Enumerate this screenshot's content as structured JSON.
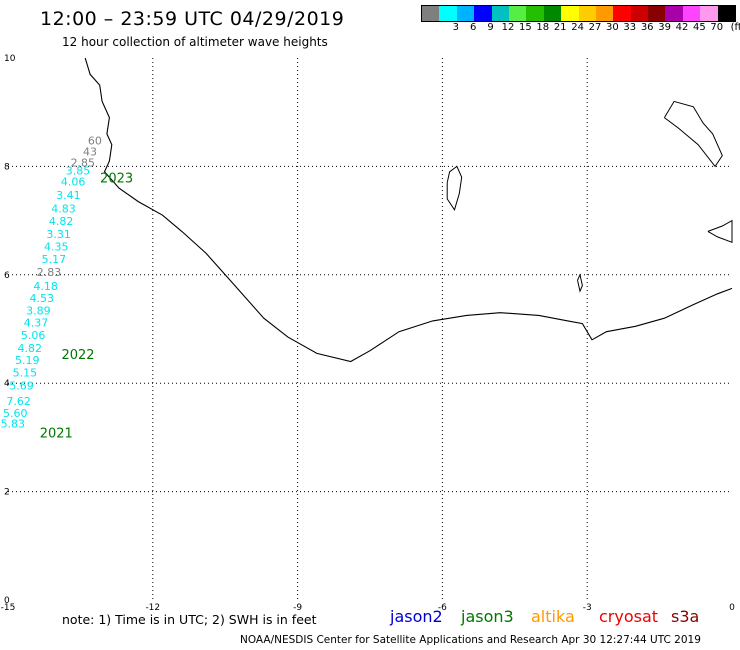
{
  "header": {
    "title": "12:00 – 23:59 UTC 04/29/2019",
    "subtitle": "12 hour collection of altimeter wave heights"
  },
  "legend": {
    "unit": "(ft)",
    "swatches": [
      {
        "color": "#7f7f7f",
        "label": ""
      },
      {
        "color": "#00ffff",
        "label": "3"
      },
      {
        "color": "#00b3ff",
        "label": "6"
      },
      {
        "color": "#0000ff",
        "label": "9"
      },
      {
        "color": "#00c0c0",
        "label": "12"
      },
      {
        "color": "#55ee44",
        "label": "15"
      },
      {
        "color": "#22c000",
        "label": "18"
      },
      {
        "color": "#008800",
        "label": "21"
      },
      {
        "color": "#ffff00",
        "label": "24"
      },
      {
        "color": "#ffcc00",
        "label": "27"
      },
      {
        "color": "#ff9900",
        "label": "30"
      },
      {
        "color": "#ff0000",
        "label": "33"
      },
      {
        "color": "#cc0000",
        "label": "36"
      },
      {
        "color": "#880000",
        "label": "39"
      },
      {
        "color": "#aa00aa",
        "label": "42"
      },
      {
        "color": "#ff44ff",
        "label": "45"
      },
      {
        "color": "#ff99ee",
        "label": "70"
      },
      {
        "color": "#000000",
        "label": ""
      }
    ]
  },
  "axes": {
    "x_ticks": [
      "-15",
      "-12",
      "-9",
      "-6",
      "-3",
      "0"
    ],
    "y_ticks": [
      "0",
      "2",
      "4",
      "6",
      "8",
      "10"
    ],
    "x_range": [
      -15,
      0
    ],
    "y_range": [
      0,
      10
    ]
  },
  "track": {
    "observations": [
      {
        "lon": -13.2,
        "lat": 8.4,
        "swh": "60",
        "color": "#7f7f7f"
      },
      {
        "lon": -13.3,
        "lat": 8.2,
        "swh": "43",
        "color": "#7f7f7f"
      },
      {
        "lon": -13.45,
        "lat": 8.0,
        "swh": "2.85",
        "color": "#7f7f7f"
      },
      {
        "lon": -13.55,
        "lat": 7.85,
        "swh": "3.85",
        "color": "#00e5ee"
      },
      {
        "lon": -13.65,
        "lat": 7.65,
        "swh": "4.06",
        "color": "#00e5ee"
      },
      {
        "lon": -13.75,
        "lat": 7.4,
        "swh": "3.41",
        "color": "#00e5ee"
      },
      {
        "lon": -13.85,
        "lat": 7.15,
        "swh": "4.83",
        "color": "#00e5ee"
      },
      {
        "lon": -13.9,
        "lat": 6.92,
        "swh": "4.82",
        "color": "#00e5ee"
      },
      {
        "lon": -13.95,
        "lat": 6.68,
        "swh": "3.31",
        "color": "#00e5ee"
      },
      {
        "lon": -14.0,
        "lat": 6.45,
        "swh": "4.35",
        "color": "#00e5ee"
      },
      {
        "lon": -14.05,
        "lat": 6.22,
        "swh": "5.17",
        "color": "#00e5ee"
      },
      {
        "lon": -14.15,
        "lat": 5.98,
        "swh": "2.83",
        "color": "#7f7f7f"
      },
      {
        "lon": -14.22,
        "lat": 5.72,
        "swh": "4.18",
        "color": "#00e5ee"
      },
      {
        "lon": -14.3,
        "lat": 5.5,
        "swh": "4.53",
        "color": "#00e5ee"
      },
      {
        "lon": -14.37,
        "lat": 5.27,
        "swh": "3.89",
        "color": "#00e5ee"
      },
      {
        "lon": -14.42,
        "lat": 5.05,
        "swh": "4.37",
        "color": "#00e5ee"
      },
      {
        "lon": -14.48,
        "lat": 4.82,
        "swh": "5.06",
        "color": "#00e5ee"
      },
      {
        "lon": -14.55,
        "lat": 4.58,
        "swh": "4.82",
        "color": "#00e5ee"
      },
      {
        "lon": -14.6,
        "lat": 4.35,
        "swh": "5.19",
        "color": "#00e5ee"
      },
      {
        "lon": -14.65,
        "lat": 4.12,
        "swh": "5.15",
        "color": "#00e5ee"
      },
      {
        "lon": -14.72,
        "lat": 3.88,
        "swh": "5.69",
        "color": "#00e5ee"
      },
      {
        "lon": -14.78,
        "lat": 3.6,
        "swh": "7.62",
        "color": "#00e5ee"
      },
      {
        "lon": -14.85,
        "lat": 3.38,
        "swh": "5.60",
        "color": "#00e5ee"
      },
      {
        "lon": -14.9,
        "lat": 3.18,
        "swh": "5.83",
        "color": "#00e5ee"
      }
    ],
    "year_marks": [
      {
        "lon": -12.75,
        "lat": 7.7,
        "text": "2023"
      },
      {
        "lon": -13.55,
        "lat": 4.45,
        "text": "2022"
      },
      {
        "lon": -14.0,
        "lat": 3.0,
        "text": "2021"
      }
    ]
  },
  "coastline": [
    [
      -13.4,
      10
    ],
    [
      -13.3,
      9.7
    ],
    [
      -13.1,
      9.5
    ],
    [
      -13.05,
      9.2
    ],
    [
      -12.9,
      8.9
    ],
    [
      -12.95,
      8.6
    ],
    [
      -12.85,
      8.4
    ],
    [
      -12.9,
      8.1
    ],
    [
      -13.0,
      7.9
    ],
    [
      -12.7,
      7.6
    ],
    [
      -12.3,
      7.35
    ],
    [
      -11.8,
      7.1
    ],
    [
      -11.4,
      6.8
    ],
    [
      -10.9,
      6.4
    ],
    [
      -10.3,
      5.8
    ],
    [
      -9.7,
      5.2
    ],
    [
      -9.2,
      4.85
    ],
    [
      -8.6,
      4.55
    ],
    [
      -7.9,
      4.4
    ],
    [
      -7.5,
      4.6
    ],
    [
      -6.9,
      4.95
    ],
    [
      -6.2,
      5.15
    ],
    [
      -5.5,
      5.25
    ],
    [
      -4.8,
      5.3
    ],
    [
      -4.0,
      5.25
    ],
    [
      -3.4,
      5.15
    ],
    [
      -3.1,
      5.1
    ],
    [
      -2.9,
      4.8
    ],
    [
      -2.6,
      4.95
    ],
    [
      -2.0,
      5.05
    ],
    [
      -1.4,
      5.2
    ],
    [
      -0.8,
      5.45
    ],
    [
      -0.3,
      5.65
    ],
    [
      0,
      5.75
    ]
  ],
  "islands": [
    [
      [
        -5.9,
        7.7
      ],
      [
        -5.85,
        7.9
      ],
      [
        -5.7,
        8.0
      ],
      [
        -5.6,
        7.8
      ],
      [
        -5.65,
        7.5
      ],
      [
        -5.75,
        7.2
      ],
      [
        -5.9,
        7.4
      ],
      [
        -5.9,
        7.7
      ]
    ],
    [
      [
        -1.4,
        8.9
      ],
      [
        -1.2,
        9.2
      ],
      [
        -0.8,
        9.1
      ],
      [
        -0.6,
        8.8
      ],
      [
        -0.4,
        8.6
      ],
      [
        -0.2,
        8.2
      ],
      [
        -0.35,
        8.0
      ],
      [
        -0.7,
        8.4
      ],
      [
        -1.1,
        8.7
      ],
      [
        -1.4,
        8.9
      ]
    ],
    [
      [
        -0.5,
        6.8
      ],
      [
        -0.2,
        6.9
      ],
      [
        0,
        7.0
      ],
      [
        0,
        6.6
      ],
      [
        -0.3,
        6.7
      ],
      [
        -0.5,
        6.8
      ]
    ],
    [
      [
        -3.2,
        5.9
      ],
      [
        -3.15,
        6.0
      ],
      [
        -3.1,
        5.8
      ],
      [
        -3.15,
        5.7
      ],
      [
        -3.2,
        5.9
      ]
    ]
  ],
  "footer": {
    "note": "note: 1) Time is in UTC; 2) SWH is in feet",
    "credit": "NOAA/NESDIS Center for Satellite Applications and Research    Apr 30 12:27:44 UTC 2019"
  },
  "satellites": [
    {
      "name": "jason2",
      "color": "#0000cc"
    },
    {
      "name": "jason3",
      "color": "#007700"
    },
    {
      "name": "altika",
      "color": "#ff9900"
    },
    {
      "name": "cryosat",
      "color": "#ee0000"
    },
    {
      "name": "s3a",
      "color": "#880000"
    }
  ]
}
